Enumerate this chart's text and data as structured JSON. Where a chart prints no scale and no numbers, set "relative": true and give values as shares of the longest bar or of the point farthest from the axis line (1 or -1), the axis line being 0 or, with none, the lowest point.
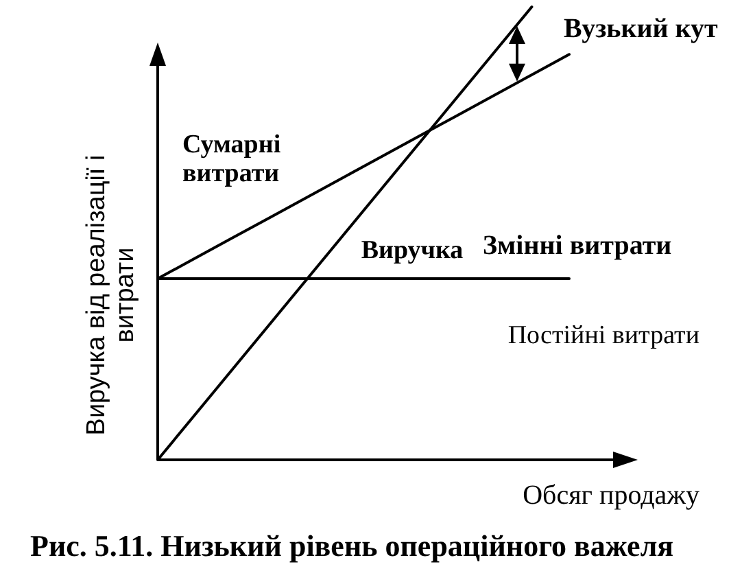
{
  "chart_data": {
    "type": "line",
    "relative": true,
    "xlabel": "Обсяг продажу",
    "ylabel": "Виручка від реалізації і витрати",
    "categories": [
      null,
      null,
      null,
      null,
      null,
      null,
      null,
      null,
      null,
      null,
      null,
      null
    ],
    "series": [
      {
        "name": "Сумарні витрати",
        "color": "#000000",
        "values": [
          0.4,
          0.445,
          0.49,
          0.535,
          0.58,
          0.625,
          0.67,
          0.715,
          0.76,
          0.805,
          0.85,
          0.895
        ]
      },
      {
        "name": "Виручка",
        "color": "#000000",
        "values": [
          0,
          0.1,
          0.2,
          0.3,
          0.4,
          0.5,
          0.6,
          0.7,
          0.8,
          0.9,
          1,
          null
        ]
      },
      {
        "name": "Постійні витрати",
        "color": "#000000",
        "values": [
          0.4,
          0.4,
          0.4,
          0.4,
          0.4,
          0.4,
          0.4,
          0.4,
          0.4,
          0.4,
          0.4,
          0.4
        ]
      }
    ],
    "annotations": [
      "Змінні витрати",
      "Вузький кут",
      "Рис. 5.11. Низький рівень операційного важеля"
    ],
    "line_style": "solid"
  }
}
